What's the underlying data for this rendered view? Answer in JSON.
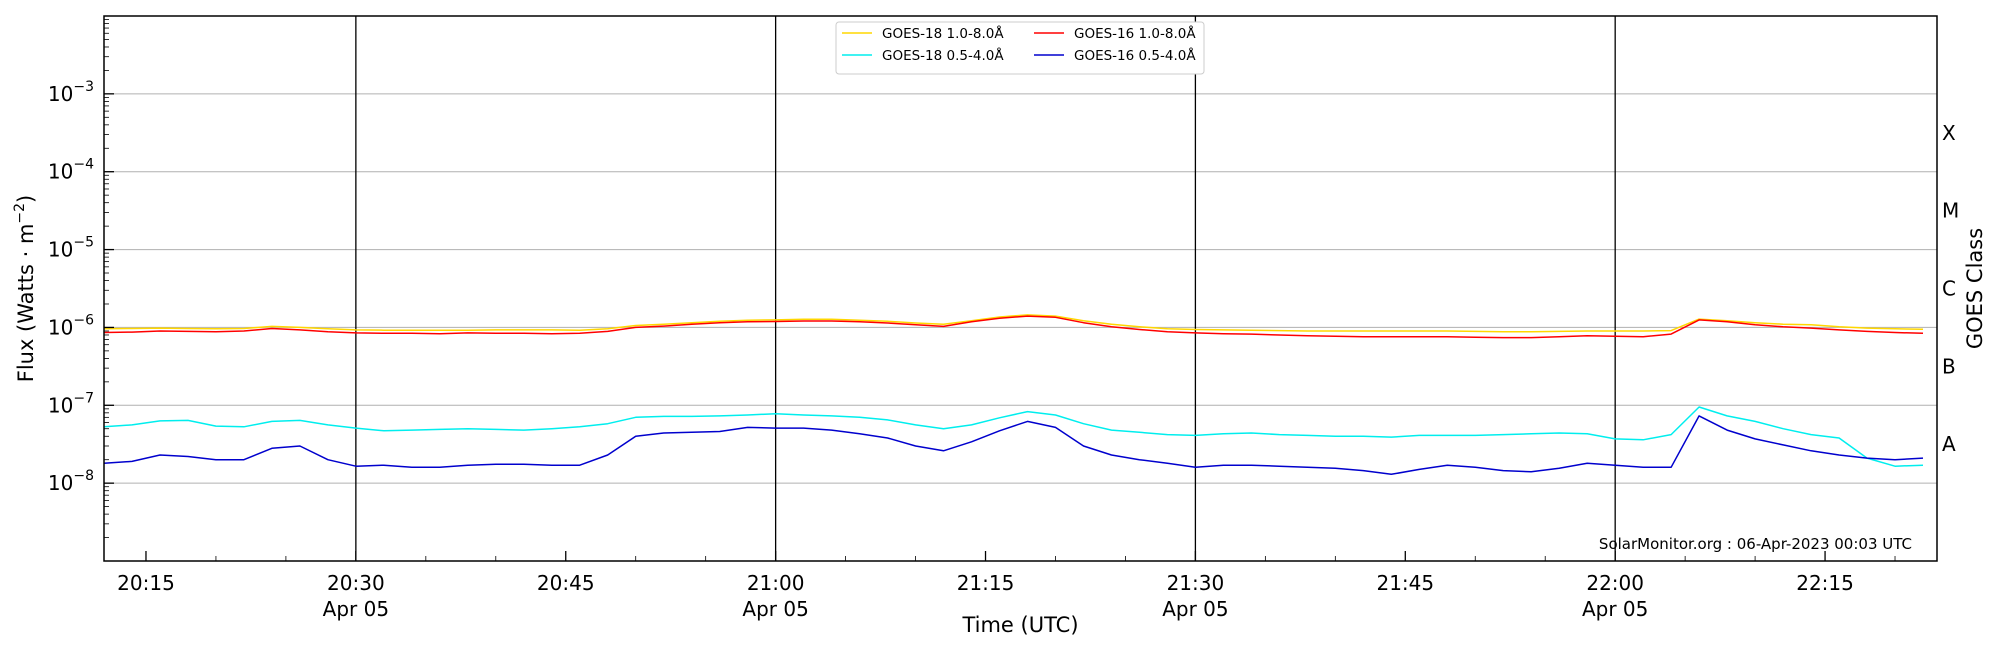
{
  "chart_data": {
    "type": "line",
    "xlabel": "Time (UTC)",
    "ylabel_text": "Flux (Watts · m",
    "ylabel_sup": "−2",
    "ylabel_close": ")",
    "right_label": "GOES Class",
    "credit": "SolarMonitor.org : 06-Apr-2023 00:03 UTC",
    "y_scale": "log",
    "ylim": [
      1e-09,
      0.01
    ],
    "xlim": [
      "20:12",
      "22:23"
    ],
    "grid": "horizontal at decades 1e-8 to 1e-3",
    "legend_placement": "top-center",
    "y_ticks": [
      {
        "value": 1e-08,
        "base": "10",
        "exp": "−8"
      },
      {
        "value": 1e-07,
        "base": "10",
        "exp": "−7"
      },
      {
        "value": 1e-06,
        "base": "10",
        "exp": "−6"
      },
      {
        "value": 1e-05,
        "base": "10",
        "exp": "−5"
      },
      {
        "value": 0.0001,
        "base": "10",
        "exp": "−4"
      },
      {
        "value": 0.001,
        "base": "10",
        "exp": "−3"
      }
    ],
    "x_ticks": [
      {
        "time": "20:15",
        "label": "20:15",
        "date": ""
      },
      {
        "time": "20:30",
        "label": "20:30",
        "date": "Apr 05"
      },
      {
        "time": "20:45",
        "label": "20:45",
        "date": ""
      },
      {
        "time": "21:00",
        "label": "21:00",
        "date": "Apr 05"
      },
      {
        "time": "21:15",
        "label": "21:15",
        "date": ""
      },
      {
        "time": "21:30",
        "label": "21:30",
        "date": "Apr 05"
      },
      {
        "time": "21:45",
        "label": "21:45",
        "date": ""
      },
      {
        "time": "22:00",
        "label": "22:00",
        "date": "Apr 05"
      },
      {
        "time": "22:15",
        "label": "22:15",
        "date": ""
      }
    ],
    "vertical_lines": [
      "20:30",
      "21:00",
      "21:30",
      "22:00"
    ],
    "goes_classes": [
      {
        "label": "A",
        "value": 3.16e-08
      },
      {
        "label": "B",
        "value": 3.16e-07
      },
      {
        "label": "C",
        "value": 3.16e-06
      },
      {
        "label": "M",
        "value": 3.16e-05
      },
      {
        "label": "X",
        "value": 0.000316
      }
    ],
    "x": [
      "20:12",
      "20:14",
      "20:16",
      "20:18",
      "20:20",
      "20:22",
      "20:24",
      "20:26",
      "20:28",
      "20:30",
      "20:32",
      "20:34",
      "20:36",
      "20:38",
      "20:40",
      "20:42",
      "20:44",
      "20:46",
      "20:48",
      "20:50",
      "20:52",
      "20:54",
      "20:56",
      "20:58",
      "21:00",
      "21:02",
      "21:04",
      "21:06",
      "21:08",
      "21:10",
      "21:12",
      "21:14",
      "21:16",
      "21:18",
      "21:20",
      "21:22",
      "21:24",
      "21:26",
      "21:28",
      "21:30",
      "21:32",
      "21:34",
      "21:36",
      "21:38",
      "21:40",
      "21:42",
      "21:44",
      "21:46",
      "21:48",
      "21:50",
      "21:52",
      "21:54",
      "21:56",
      "21:58",
      "22:00",
      "22:02",
      "22:04",
      "22:06",
      "22:08",
      "22:10",
      "22:12",
      "22:14",
      "22:16",
      "22:18",
      "22:20",
      "22:22"
    ],
    "series": [
      {
        "name": "GOES-18 1.0-8.0Å",
        "color": "#ffd700",
        "values": [
          9.6e-07,
          9.7e-07,
          9.8e-07,
          9.7e-07,
          9.6e-07,
          9.7e-07,
          1.03e-06,
          1e-06,
          9.6e-07,
          9.3e-07,
          9.2e-07,
          9.2e-07,
          9.2e-07,
          9.2e-07,
          9.3e-07,
          9.3e-07,
          9.3e-07,
          9.2e-07,
          9.6e-07,
          1.06e-06,
          1.1e-06,
          1.15e-06,
          1.2e-06,
          1.24e-06,
          1.25e-06,
          1.27e-06,
          1.27e-06,
          1.24e-06,
          1.2e-06,
          1.14e-06,
          1.1e-06,
          1.22e-06,
          1.36e-06,
          1.45e-06,
          1.4e-06,
          1.22e-06,
          1.1e-06,
          1.02e-06,
          9.6e-07,
          9.4e-07,
          9.3e-07,
          9.2e-07,
          9.1e-07,
          9e-07,
          9e-07,
          9e-07,
          9e-07,
          9e-07,
          9e-07,
          8.9e-07,
          8.8e-07,
          8.8e-07,
          8.9e-07,
          9e-07,
          9e-07,
          9e-07,
          9.1e-07,
          1.28e-06,
          1.22e-06,
          1.15e-06,
          1.1e-06,
          1.08e-06,
          1.02e-06,
          9.8e-07,
          9.6e-07,
          9.5e-07
        ]
      },
      {
        "name": "GOES-16 1.0-8.0Å",
        "color": "#ff0000",
        "values": [
          8.6e-07,
          8.7e-07,
          9e-07,
          8.9e-07,
          8.8e-07,
          9e-07,
          9.7e-07,
          9.3e-07,
          8.8e-07,
          8.5e-07,
          8.4e-07,
          8.4e-07,
          8.3e-07,
          8.5e-07,
          8.4e-07,
          8.4e-07,
          8.3e-07,
          8.4e-07,
          8.9e-07,
          1e-06,
          1.04e-06,
          1.1e-06,
          1.15e-06,
          1.18e-06,
          1.19e-06,
          1.21e-06,
          1.21e-06,
          1.18e-06,
          1.14e-06,
          1.08e-06,
          1.03e-06,
          1.18e-06,
          1.31e-06,
          1.4e-06,
          1.35e-06,
          1.15e-06,
          1.02e-06,
          9.4e-07,
          8.8e-07,
          8.5e-07,
          8.3e-07,
          8.2e-07,
          8e-07,
          7.8e-07,
          7.7e-07,
          7.6e-07,
          7.6e-07,
          7.6e-07,
          7.6e-07,
          7.5e-07,
          7.4e-07,
          7.4e-07,
          7.6e-07,
          7.8e-07,
          7.7e-07,
          7.6e-07,
          8.2e-07,
          1.25e-06,
          1.18e-06,
          1.08e-06,
          1.02e-06,
          9.8e-07,
          9.3e-07,
          8.9e-07,
          8.6e-07,
          8.4e-07
        ]
      },
      {
        "name": "GOES-18 0.5-4.0Å",
        "color": "#00eeee",
        "values": [
          5.3e-08,
          5.6e-08,
          6.3e-08,
          6.4e-08,
          5.4e-08,
          5.3e-08,
          6.2e-08,
          6.4e-08,
          5.6e-08,
          5.1e-08,
          4.7e-08,
          4.8e-08,
          4.9e-08,
          5e-08,
          4.9e-08,
          4.8e-08,
          5e-08,
          5.3e-08,
          5.8e-08,
          7e-08,
          7.2e-08,
          7.2e-08,
          7.3e-08,
          7.5e-08,
          7.8e-08,
          7.5e-08,
          7.3e-08,
          7e-08,
          6.5e-08,
          5.6e-08,
          5e-08,
          5.6e-08,
          6.9e-08,
          8.3e-08,
          7.5e-08,
          5.8e-08,
          4.8e-08,
          4.5e-08,
          4.2e-08,
          4.1e-08,
          4.3e-08,
          4.4e-08,
          4.2e-08,
          4.1e-08,
          4e-08,
          4e-08,
          3.9e-08,
          4.1e-08,
          4.1e-08,
          4.1e-08,
          4.2e-08,
          4.3e-08,
          4.4e-08,
          4.3e-08,
          3.7e-08,
          3.6e-08,
          4.2e-08,
          9.5e-08,
          7.3e-08,
          6.2e-08,
          5e-08,
          4.2e-08,
          3.8e-08,
          2.1e-08,
          1.65e-08,
          1.7e-08
        ]
      },
      {
        "name": "GOES-16 0.5-4.0Å",
        "color": "#0000cd",
        "values": [
          1.8e-08,
          1.9e-08,
          2.3e-08,
          2.2e-08,
          2e-08,
          2e-08,
          2.8e-08,
          3e-08,
          2e-08,
          1.65e-08,
          1.7e-08,
          1.6e-08,
          1.6e-08,
          1.7e-08,
          1.75e-08,
          1.75e-08,
          1.7e-08,
          1.7e-08,
          2.3e-08,
          4e-08,
          4.4e-08,
          4.5e-08,
          4.6e-08,
          5.2e-08,
          5.1e-08,
          5.1e-08,
          4.8e-08,
          4.3e-08,
          3.8e-08,
          3e-08,
          2.6e-08,
          3.4e-08,
          4.7e-08,
          6.2e-08,
          5.2e-08,
          3e-08,
          2.3e-08,
          2e-08,
          1.8e-08,
          1.6e-08,
          1.7e-08,
          1.7e-08,
          1.65e-08,
          1.6e-08,
          1.55e-08,
          1.45e-08,
          1.3e-08,
          1.5e-08,
          1.7e-08,
          1.6e-08,
          1.45e-08,
          1.4e-08,
          1.55e-08,
          1.8e-08,
          1.7e-08,
          1.6e-08,
          1.6e-08,
          7.3e-08,
          4.8e-08,
          3.7e-08,
          3.1e-08,
          2.6e-08,
          2.3e-08,
          2.1e-08,
          2e-08,
          2.1e-08
        ]
      }
    ],
    "legend_order": [
      0,
      1,
      2,
      3
    ]
  }
}
